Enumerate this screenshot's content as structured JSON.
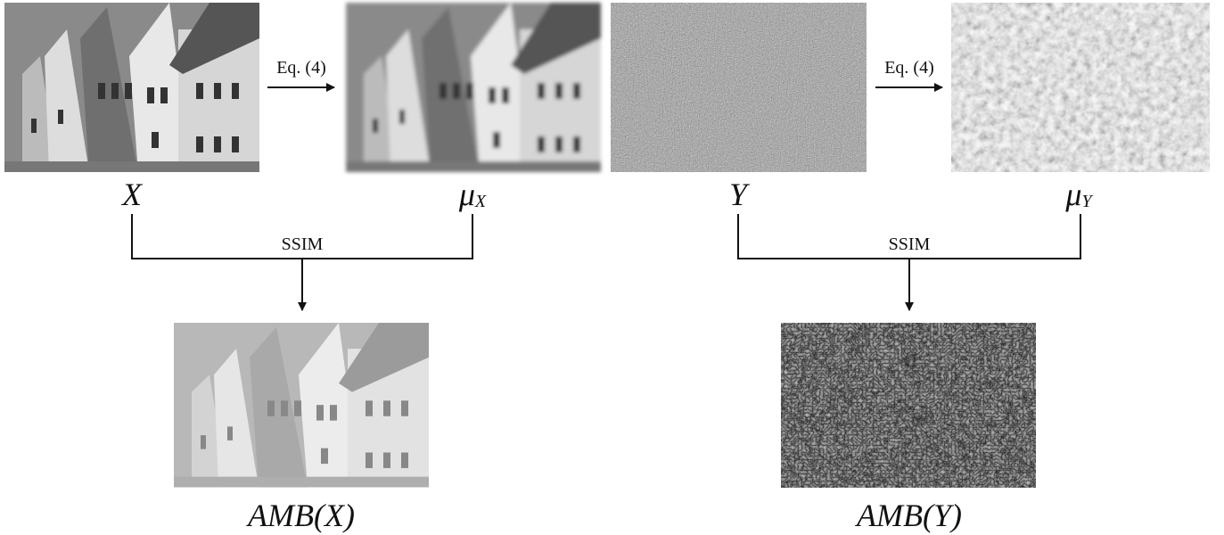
{
  "nodes": [
    {
      "label": {
        "symbol": "X"
      }
    },
    {
      "label": {
        "symbol": "μ",
        "subscript": "X"
      }
    },
    {
      "label": {
        "symbol": "Y"
      }
    },
    {
      "label": {
        "symbol": "μ",
        "subscript": "Y"
      }
    },
    {
      "label": {
        "symbol": "AMB(X)"
      }
    },
    {
      "label": {
        "symbol": "AMB(Y)"
      }
    }
  ],
  "edges": [
    {
      "label": "Eq. (4)"
    },
    {
      "label": "Eq. (4)"
    },
    {
      "label": "SSIM"
    },
    {
      "label": "SSIM"
    }
  ]
}
